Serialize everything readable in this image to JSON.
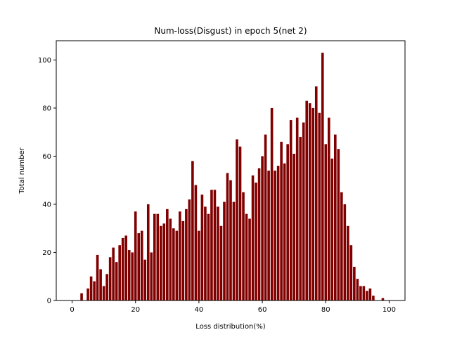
{
  "chart_data": {
    "type": "bar",
    "title": "Num-loss(Disgust) in epoch 5(net 2)",
    "xlabel": "Loss distribution(%)",
    "ylabel": "Total number",
    "xlim": [
      -5,
      105
    ],
    "ylim": [
      0,
      108
    ],
    "xticks": [
      0,
      20,
      40,
      60,
      80,
      100
    ],
    "yticks": [
      0,
      20,
      40,
      60,
      80,
      100
    ],
    "grid": false,
    "legend": "none",
    "bar_color": "#800000",
    "x": [
      0,
      1,
      2,
      3,
      4,
      5,
      6,
      7,
      8,
      9,
      10,
      11,
      12,
      13,
      14,
      15,
      16,
      17,
      18,
      19,
      20,
      21,
      22,
      23,
      24,
      25,
      26,
      27,
      28,
      29,
      30,
      31,
      32,
      33,
      34,
      35,
      36,
      37,
      38,
      39,
      40,
      41,
      42,
      43,
      44,
      45,
      46,
      47,
      48,
      49,
      50,
      51,
      52,
      53,
      54,
      55,
      56,
      57,
      58,
      59,
      60,
      61,
      62,
      63,
      64,
      65,
      66,
      67,
      68,
      69,
      70,
      71,
      72,
      73,
      74,
      75,
      76,
      77,
      78,
      79,
      80,
      81,
      82,
      83,
      84,
      85,
      86,
      87,
      88,
      89,
      90,
      91,
      92,
      93,
      94,
      95,
      96,
      97,
      98,
      99,
      100
    ],
    "values": [
      0,
      0,
      0,
      3,
      0,
      5,
      10,
      8,
      19,
      13,
      6,
      11,
      18,
      22,
      16,
      23,
      26,
      27,
      21,
      20,
      37,
      28,
      29,
      17,
      40,
      20,
      36,
      36,
      31,
      32,
      38,
      34,
      30,
      29,
      37,
      33,
      38,
      42,
      58,
      48,
      29,
      44,
      39,
      36,
      46,
      46,
      39,
      31,
      41,
      53,
      50,
      41,
      67,
      64,
      45,
      36,
      34,
      52,
      49,
      55,
      60,
      69,
      54,
      80,
      54,
      56,
      66,
      57,
      65,
      75,
      61,
      76,
      68,
      74,
      83,
      82,
      80,
      89,
      78,
      103,
      65,
      76,
      59,
      69,
      63,
      45,
      40,
      31,
      23,
      14,
      9,
      6,
      6,
      4,
      5,
      2,
      0,
      0,
      1,
      0,
      0
    ]
  }
}
